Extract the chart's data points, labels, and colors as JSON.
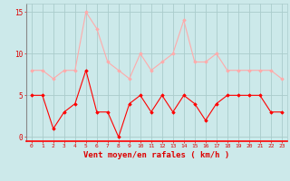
{
  "x": [
    0,
    1,
    2,
    3,
    4,
    5,
    6,
    7,
    8,
    9,
    10,
    11,
    12,
    13,
    14,
    15,
    16,
    17,
    18,
    19,
    20,
    21,
    22,
    23
  ],
  "vent_moyen": [
    5,
    5,
    1,
    3,
    4,
    8,
    3,
    3,
    0,
    4,
    5,
    3,
    5,
    3,
    5,
    4,
    2,
    4,
    5,
    5,
    5,
    5,
    3,
    3
  ],
  "rafales": [
    8,
    8,
    7,
    8,
    8,
    15,
    13,
    9,
    8,
    7,
    10,
    8,
    9,
    10,
    14,
    9,
    9,
    10,
    8,
    8,
    8,
    8,
    8,
    7
  ],
  "bg_color": "#cce9ea",
  "grid_color": "#aacccc",
  "line_color_moyen": "#ff0000",
  "line_color_rafales": "#ffaaaa",
  "xlabel": "Vent moyen/en rafales ( km/h )",
  "xlabel_color": "#dd0000",
  "tick_color": "#dd0000",
  "ylim": [
    -0.5,
    16
  ],
  "yticks": [
    0,
    5,
    10,
    15
  ],
  "xlim": [
    -0.5,
    23.5
  ]
}
